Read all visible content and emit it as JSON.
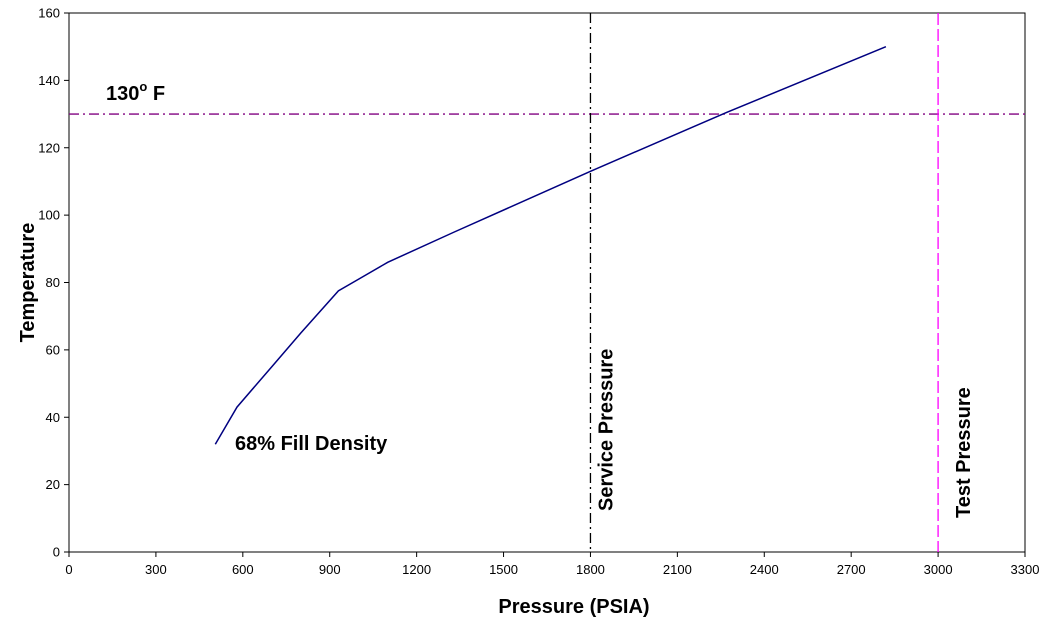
{
  "chart_data": {
    "type": "line",
    "title": "",
    "xlabel": "Pressure (PSIA)",
    "ylabel": "Temperature",
    "xlim": [
      0,
      3300
    ],
    "ylim": [
      0,
      160
    ],
    "xticks": [
      0,
      300,
      600,
      900,
      1200,
      1500,
      1800,
      2100,
      2400,
      2700,
      3000,
      3300
    ],
    "yticks": [
      0,
      20,
      40,
      60,
      80,
      100,
      120,
      140,
      160
    ],
    "grid": false,
    "legend": "none",
    "series": [
      {
        "name": "68% Fill Density",
        "color": "#000080",
        "x": [
          505,
          580,
          700,
          800,
          930,
          1000,
          1100,
          1330,
          1800,
          2270,
          2820
        ],
        "y": [
          32,
          43,
          55,
          65,
          77.5,
          81,
          86,
          95,
          113,
          130.5,
          150
        ]
      }
    ],
    "reference_lines": [
      {
        "orientation": "horizontal",
        "value": 130,
        "color": "#800080",
        "style": "dash-dot",
        "label_main": "130",
        "label_sup": "o",
        "label_tail": " F"
      },
      {
        "orientation": "vertical",
        "value": 1800,
        "color": "#000000",
        "style": "dash-dot",
        "label": "Service Pressure"
      },
      {
        "orientation": "vertical",
        "value": 3000,
        "color": "#ff00ff",
        "style": "dash",
        "label": "Test Pressure"
      }
    ]
  }
}
